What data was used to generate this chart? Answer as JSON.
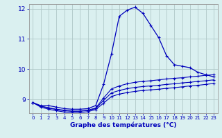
{
  "xlabel": "Graphe des températures (°C)",
  "background_color": "#daf0f0",
  "line_color": "#0000bb",
  "grid_color": "#b0c8c8",
  "xlim": [
    -0.5,
    23.5
  ],
  "ylim": [
    8.55,
    12.15
  ],
  "yticks": [
    9,
    10,
    11,
    12
  ],
  "xticks": [
    0,
    1,
    2,
    3,
    4,
    5,
    6,
    7,
    8,
    9,
    10,
    11,
    12,
    13,
    14,
    15,
    16,
    17,
    18,
    19,
    20,
    21,
    22,
    23
  ],
  "hours": [
    0,
    1,
    2,
    3,
    4,
    5,
    6,
    7,
    8,
    9,
    10,
    11,
    12,
    13,
    14,
    15,
    16,
    17,
    18,
    19,
    20,
    21,
    22,
    23
  ],
  "temp_main": [
    8.9,
    8.8,
    8.8,
    8.75,
    8.7,
    8.68,
    8.68,
    8.7,
    8.8,
    9.5,
    10.5,
    11.75,
    11.95,
    12.05,
    11.85,
    11.45,
    11.05,
    10.45,
    10.15,
    10.1,
    10.05,
    9.9,
    9.82,
    9.75
  ],
  "temp_line2": [
    8.9,
    8.78,
    8.73,
    8.68,
    8.65,
    8.62,
    8.62,
    8.65,
    8.72,
    9.05,
    9.35,
    9.45,
    9.52,
    9.57,
    9.6,
    9.62,
    9.65,
    9.68,
    9.7,
    9.72,
    9.75,
    9.77,
    9.8,
    9.82
  ],
  "temp_line3": [
    8.9,
    8.78,
    8.72,
    8.67,
    8.63,
    8.61,
    8.61,
    8.64,
    8.7,
    8.97,
    9.22,
    9.3,
    9.36,
    9.4,
    9.43,
    9.45,
    9.47,
    9.5,
    9.52,
    9.55,
    9.57,
    9.6,
    9.62,
    9.65
  ],
  "temp_line4": [
    8.9,
    8.75,
    8.68,
    8.63,
    8.59,
    8.57,
    8.57,
    8.6,
    8.67,
    8.88,
    9.1,
    9.18,
    9.23,
    9.27,
    9.3,
    9.32,
    9.34,
    9.37,
    9.39,
    9.42,
    9.45,
    9.47,
    9.5,
    9.53
  ]
}
